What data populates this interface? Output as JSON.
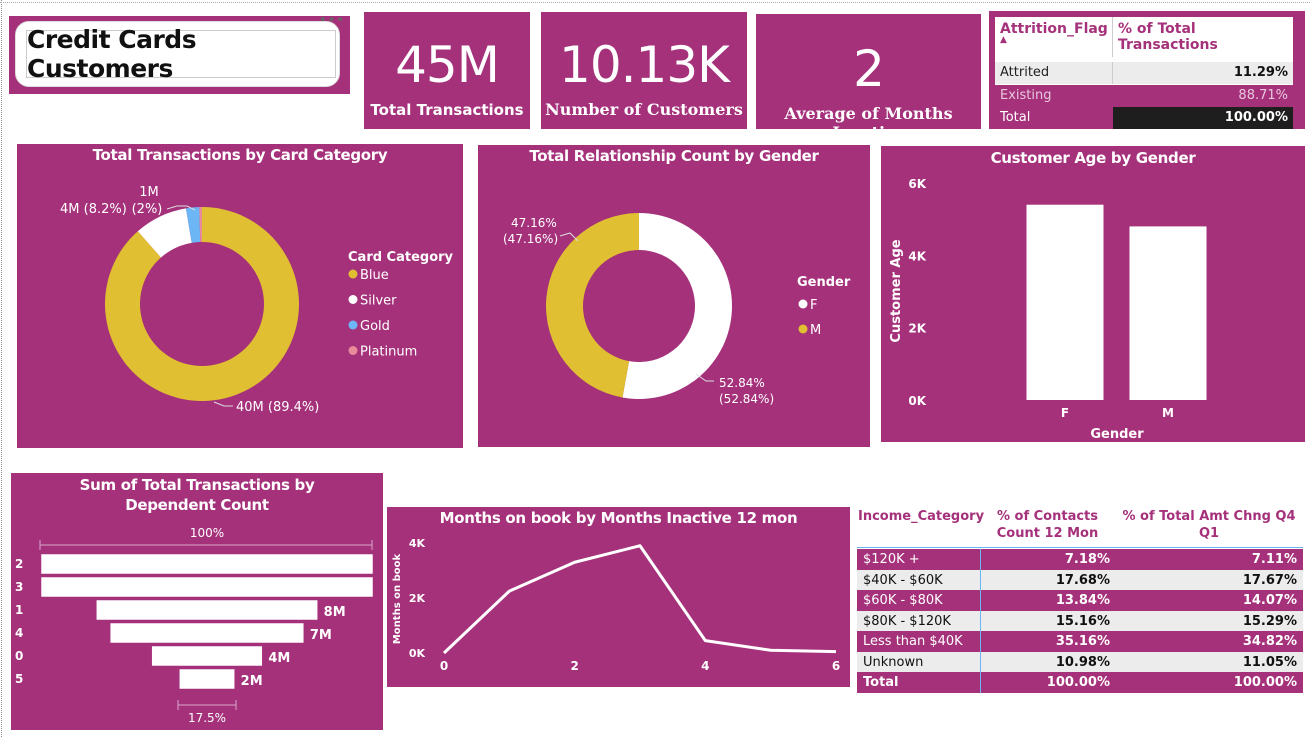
{
  "page": {
    "title": "Credit Cards Customers"
  },
  "colors": {
    "panel": "#a5317b",
    "blue": "#e0bf32",
    "silver": "#ffffff",
    "gold": "#6cb6f5",
    "platinum": "#e98a9a",
    "dark": "#1e1e1e"
  },
  "kpis": [
    {
      "value": "45M",
      "label": "Total Transactions"
    },
    {
      "value": "10.13K",
      "label": "Number of Customers"
    },
    {
      "value": "2",
      "label": "Average of Months Inactive"
    }
  ],
  "attrition_table": {
    "headers": [
      "Attrition_Flag",
      "% of Total Transactions"
    ],
    "sort_icon": "triangle-up-icon",
    "rows": [
      {
        "label": "Attrited Customer",
        "value": "11.29%"
      },
      {
        "label": "Existing Customer",
        "value": "88.71%"
      }
    ],
    "total": {
      "label": "Total",
      "value": "100.00%"
    }
  },
  "chart_data": [
    {
      "type": "pie",
      "title": "Total Transactions by Card Category",
      "legend_title": "Card Category",
      "legend_position": "right",
      "slices": [
        {
          "name": "Blue",
          "value": 40,
          "percent": 89.4,
          "label": "40M (89.4%)"
        },
        {
          "name": "Silver",
          "value": 4,
          "percent": 8.2,
          "label": "4M (8.2%)"
        },
        {
          "name": "Gold",
          "value": 1,
          "percent": 2.0,
          "label": "1M (2%)"
        },
        {
          "name": "Platinum",
          "value": 0.2,
          "percent": 0.4,
          "label": ""
        }
      ]
    },
    {
      "type": "pie",
      "title": "Total Relationship Count by Gender",
      "legend_title": "Gender",
      "legend_position": "right",
      "slices": [
        {
          "name": "F",
          "value": 52.84,
          "label_line1": "52.84%",
          "label_line2": "(52.84%)"
        },
        {
          "name": "M",
          "value": 47.16,
          "label_line1": "47.16%",
          "label_line2": "(47.16%)"
        }
      ]
    },
    {
      "type": "bar",
      "title": "Customer Age by Gender",
      "xlabel": "Gender",
      "ylabel": "Customer Age",
      "categories": [
        "F",
        "M"
      ],
      "values": [
        5400,
        4800
      ],
      "ylim": [
        0,
        6000
      ],
      "yticks": [
        {
          "v": 0,
          "label": "0K"
        },
        {
          "v": 2000,
          "label": "2K"
        },
        {
          "v": 4000,
          "label": "4K"
        },
        {
          "v": 6000,
          "label": "6K"
        }
      ]
    },
    {
      "type": "bar",
      "subtype": "funnel",
      "title_line1": "Sum of Total Transactions by",
      "title_line2": "Dependent Count",
      "top_label": "100%",
      "bottom_label": "17.5%",
      "categories": [
        "2",
        "3",
        "1",
        "4",
        "0",
        "5"
      ],
      "values": [
        12,
        12,
        8,
        7,
        4,
        2
      ],
      "value_labels": [
        "",
        "",
        "8M",
        "7M",
        "4M",
        "2M"
      ]
    },
    {
      "type": "line",
      "title": "Months on book by Months Inactive 12 mon",
      "ylabel": "Months on book",
      "x": [
        0,
        1,
        2,
        3,
        4,
        5,
        6
      ],
      "values": [
        0,
        2250,
        3300,
        3900,
        450,
        100,
        50
      ],
      "ylim": [
        0,
        4000
      ],
      "xticks": [
        0,
        2,
        4,
        6
      ],
      "yticks": [
        {
          "v": 0,
          "label": "0K"
        },
        {
          "v": 2000,
          "label": "2K"
        },
        {
          "v": 4000,
          "label": "4K"
        }
      ]
    },
    {
      "type": "table",
      "headers": [
        "Income_Category",
        "% of Contacts Count 12 Mon",
        "% of Total Amt Chng Q4 Q1"
      ],
      "header_lines": [
        [
          "Income_Category"
        ],
        [
          "% of Contacts",
          "Count 12 Mon"
        ],
        [
          "% of Total Amt Chng Q4 Q1"
        ]
      ],
      "rows": [
        [
          "$120K +",
          "7.18%",
          "7.11%"
        ],
        [
          "$40K - $60K",
          "17.68%",
          "17.67%"
        ],
        [
          "$60K - $80K",
          "13.84%",
          "14.07%"
        ],
        [
          "$80K - $120K",
          "15.16%",
          "15.29%"
        ],
        [
          "Less than $40K",
          "35.16%",
          "34.82%"
        ],
        [
          "Unknown",
          "10.98%",
          "11.05%"
        ],
        [
          "Total",
          "100.00%",
          "100.00%"
        ]
      ]
    }
  ]
}
